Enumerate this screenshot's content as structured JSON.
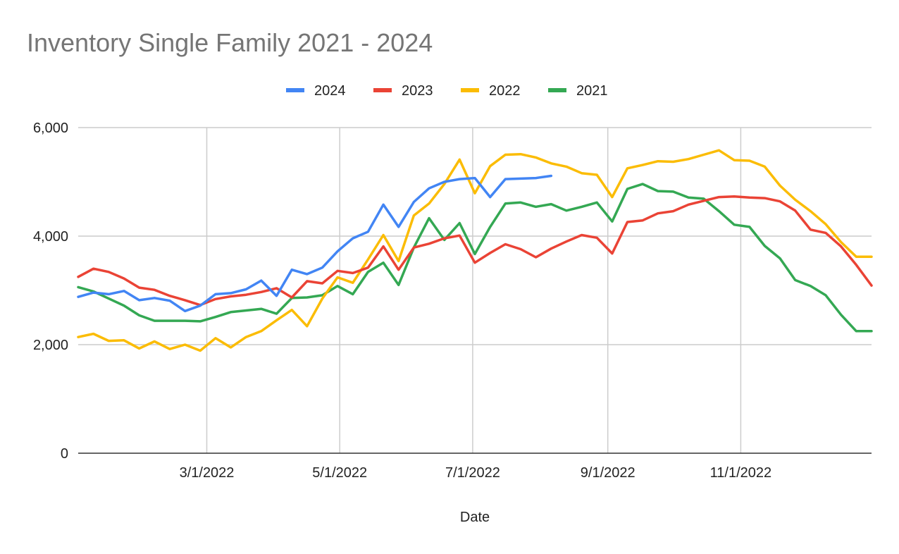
{
  "chart_data": {
    "type": "line",
    "title": "Inventory Single Family 2021 - 2024",
    "xlabel": "Date",
    "ylabel": "",
    "ylim": [
      0,
      6000
    ],
    "y_ticks": [
      0,
      2000,
      4000,
      6000
    ],
    "y_tick_labels": [
      "0",
      "2,000",
      "4,000",
      "6,000"
    ],
    "x_range": [
      "2022-01-01",
      "2022-12-31"
    ],
    "x_ticks": [
      "2022-03-01",
      "2022-05-01",
      "2022-07-01",
      "2022-09-01",
      "2022-11-01"
    ],
    "x_tick_labels": [
      "3/1/2022",
      "5/1/2022",
      "7/1/2022",
      "9/1/2022",
      "11/1/2022"
    ],
    "grid": true,
    "legend_position": "top",
    "series": [
      {
        "name": "2024",
        "color": "#4285F4",
        "x": [
          "2022-01-01",
          "2022-01-08",
          "2022-01-15",
          "2022-01-22",
          "2022-01-29",
          "2022-02-05",
          "2022-02-12",
          "2022-02-19",
          "2022-02-26",
          "2022-03-05",
          "2022-03-12",
          "2022-03-19",
          "2022-03-26",
          "2022-04-02",
          "2022-04-09",
          "2022-04-16",
          "2022-04-23",
          "2022-04-30",
          "2022-05-07",
          "2022-05-14",
          "2022-05-21",
          "2022-05-28",
          "2022-06-04",
          "2022-06-11",
          "2022-06-18",
          "2022-06-25",
          "2022-07-02",
          "2022-07-09",
          "2022-07-16",
          "2022-07-23",
          "2022-07-30",
          "2022-08-06"
        ],
        "y": [
          2880,
          2960,
          2930,
          2990,
          2820,
          2860,
          2810,
          2620,
          2720,
          2930,
          2950,
          3020,
          3180,
          2900,
          3380,
          3300,
          3420,
          3720,
          3960,
          4080,
          4580,
          4170,
          4630,
          4880,
          5000,
          5050,
          5070,
          4720,
          5050,
          5060,
          5070,
          5110
        ]
      },
      {
        "name": "2023",
        "color": "#EA4335",
        "x": [
          "2022-01-01",
          "2022-01-08",
          "2022-01-15",
          "2022-01-22",
          "2022-01-29",
          "2022-02-05",
          "2022-02-12",
          "2022-02-19",
          "2022-02-26",
          "2022-03-05",
          "2022-03-12",
          "2022-03-19",
          "2022-03-26",
          "2022-04-02",
          "2022-04-09",
          "2022-04-16",
          "2022-04-23",
          "2022-04-30",
          "2022-05-07",
          "2022-05-14",
          "2022-05-21",
          "2022-05-28",
          "2022-06-04",
          "2022-06-11",
          "2022-06-18",
          "2022-06-25",
          "2022-07-02",
          "2022-07-09",
          "2022-07-16",
          "2022-07-23",
          "2022-07-30",
          "2022-08-06",
          "2022-08-13",
          "2022-08-20",
          "2022-08-27",
          "2022-09-03",
          "2022-09-10",
          "2022-09-17",
          "2022-09-24",
          "2022-10-01",
          "2022-10-08",
          "2022-10-15",
          "2022-10-22",
          "2022-10-29",
          "2022-11-05",
          "2022-11-12",
          "2022-11-19",
          "2022-11-26",
          "2022-12-03",
          "2022-12-10",
          "2022-12-17",
          "2022-12-24",
          "2022-12-31"
        ],
        "y": [
          3250,
          3400,
          3340,
          3220,
          3050,
          3010,
          2900,
          2820,
          2730,
          2840,
          2890,
          2920,
          2970,
          3040,
          2870,
          3170,
          3130,
          3360,
          3320,
          3420,
          3810,
          3380,
          3790,
          3860,
          3960,
          4010,
          3510,
          3690,
          3850,
          3760,
          3610,
          3770,
          3900,
          4020,
          3970,
          3680,
          4260,
          4290,
          4420,
          4460,
          4580,
          4650,
          4720,
          4730,
          4710,
          4700,
          4640,
          4470,
          4120,
          4060,
          3810,
          3470,
          3090
        ]
      },
      {
        "name": "2022",
        "color": "#FBBC04",
        "x": [
          "2022-01-01",
          "2022-01-08",
          "2022-01-15",
          "2022-01-22",
          "2022-01-29",
          "2022-02-05",
          "2022-02-12",
          "2022-02-19",
          "2022-02-26",
          "2022-03-05",
          "2022-03-12",
          "2022-03-19",
          "2022-03-26",
          "2022-04-02",
          "2022-04-09",
          "2022-04-16",
          "2022-04-23",
          "2022-04-30",
          "2022-05-07",
          "2022-05-14",
          "2022-05-21",
          "2022-05-28",
          "2022-06-04",
          "2022-06-11",
          "2022-06-18",
          "2022-06-25",
          "2022-07-02",
          "2022-07-09",
          "2022-07-16",
          "2022-07-23",
          "2022-07-30",
          "2022-08-06",
          "2022-08-13",
          "2022-08-20",
          "2022-08-27",
          "2022-09-03",
          "2022-09-10",
          "2022-09-17",
          "2022-09-24",
          "2022-10-01",
          "2022-10-08",
          "2022-10-15",
          "2022-10-22",
          "2022-10-29",
          "2022-11-05",
          "2022-11-12",
          "2022-11-19",
          "2022-11-26",
          "2022-12-03",
          "2022-12-10",
          "2022-12-17",
          "2022-12-24",
          "2022-12-31"
        ],
        "y": [
          2140,
          2200,
          2070,
          2080,
          1930,
          2060,
          1920,
          2000,
          1890,
          2120,
          1950,
          2140,
          2250,
          2450,
          2640,
          2340,
          2850,
          3240,
          3140,
          3570,
          4020,
          3540,
          4380,
          4600,
          4960,
          5410,
          4790,
          5290,
          5500,
          5510,
          5450,
          5340,
          5280,
          5160,
          5130,
          4720,
          5250,
          5310,
          5380,
          5370,
          5420,
          5500,
          5580,
          5400,
          5390,
          5280,
          4930,
          4670,
          4460,
          4220,
          3890,
          3620,
          3620
        ]
      },
      {
        "name": "2021",
        "color": "#34A853",
        "x": [
          "2022-01-01",
          "2022-01-08",
          "2022-01-15",
          "2022-01-22",
          "2022-01-29",
          "2022-02-05",
          "2022-02-12",
          "2022-02-19",
          "2022-02-26",
          "2022-03-05",
          "2022-03-12",
          "2022-03-19",
          "2022-03-26",
          "2022-04-02",
          "2022-04-09",
          "2022-04-16",
          "2022-04-23",
          "2022-04-30",
          "2022-05-07",
          "2022-05-14",
          "2022-05-21",
          "2022-05-28",
          "2022-06-04",
          "2022-06-11",
          "2022-06-18",
          "2022-06-25",
          "2022-07-02",
          "2022-07-09",
          "2022-07-16",
          "2022-07-23",
          "2022-07-30",
          "2022-08-06",
          "2022-08-13",
          "2022-08-20",
          "2022-08-27",
          "2022-09-03",
          "2022-09-10",
          "2022-09-17",
          "2022-09-24",
          "2022-10-01",
          "2022-10-08",
          "2022-10-15",
          "2022-10-22",
          "2022-10-29",
          "2022-11-05",
          "2022-11-12",
          "2022-11-19",
          "2022-11-26",
          "2022-12-03",
          "2022-12-10",
          "2022-12-17",
          "2022-12-24",
          "2022-12-31"
        ],
        "y": [
          3060,
          2980,
          2850,
          2720,
          2540,
          2440,
          2440,
          2440,
          2430,
          2510,
          2600,
          2630,
          2660,
          2570,
          2860,
          2870,
          2910,
          3080,
          2930,
          3340,
          3510,
          3100,
          3790,
          4330,
          3930,
          4240,
          3670,
          4170,
          4600,
          4620,
          4540,
          4590,
          4470,
          4540,
          4620,
          4270,
          4870,
          4960,
          4830,
          4820,
          4710,
          4690,
          4460,
          4210,
          4170,
          3820,
          3590,
          3190,
          3080,
          2910,
          2550,
          2250,
          2250
        ]
      }
    ]
  }
}
